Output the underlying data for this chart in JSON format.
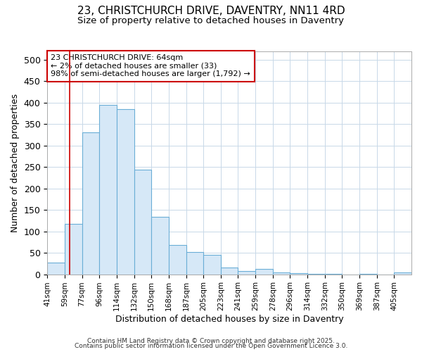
{
  "title1": "23, CHRISTCHURCH DRIVE, DAVENTRY, NN11 4RD",
  "title2": "Size of property relative to detached houses in Daventry",
  "xlabel": "Distribution of detached houses by size in Daventry",
  "ylabel": "Number of detached properties",
  "bin_labels": [
    "41sqm",
    "59sqm",
    "77sqm",
    "96sqm",
    "114sqm",
    "132sqm",
    "150sqm",
    "168sqm",
    "187sqm",
    "205sqm",
    "223sqm",
    "241sqm",
    "259sqm",
    "278sqm",
    "296sqm",
    "314sqm",
    "332sqm",
    "350sqm",
    "369sqm",
    "387sqm",
    "405sqm"
  ],
  "bar_heights": [
    27,
    118,
    330,
    395,
    385,
    243,
    133,
    68,
    52,
    46,
    15,
    7,
    12,
    4,
    2,
    1,
    1,
    0,
    1,
    0,
    5
  ],
  "bar_fill": "#d6e8f7",
  "bar_edge": "#6aaed6",
  "bar_linewidth": 0.8,
  "subject_line_color": "#cc0000",
  "annotation_box_text": "23 CHRISTCHURCH DRIVE: 64sqm\n← 2% of detached houses are smaller (33)\n98% of semi-detached houses are larger (1,792) →",
  "annotation_box_fc": "white",
  "annotation_box_ec": "#cc0000",
  "grid_color": "#c8d8e8",
  "ylim": [
    0,
    520
  ],
  "yticks": [
    0,
    50,
    100,
    150,
    200,
    250,
    300,
    350,
    400,
    450,
    500
  ],
  "footer_line1": "Contains HM Land Registry data © Crown copyright and database right 2025.",
  "footer_line2": "Contains public sector information licensed under the Open Government Licence 3.0.",
  "bg_color": "#ffffff"
}
